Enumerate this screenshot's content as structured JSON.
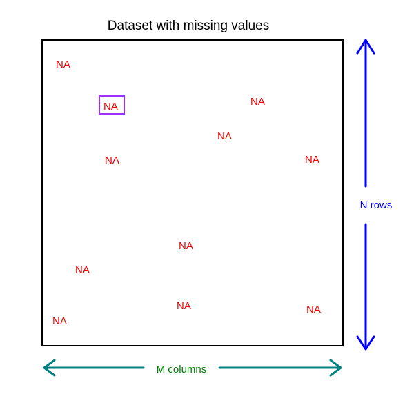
{
  "title": "Dataset with missing values",
  "missing_label": "NA",
  "rows_label": "N rows",
  "columns_label": "M columns",
  "colors": {
    "missing_text": "#ee0000",
    "highlight_box": "#9b30ff",
    "rows_arrow": "#0000ff",
    "columns_arrow": "#008080",
    "columns_text": "#008000"
  }
}
